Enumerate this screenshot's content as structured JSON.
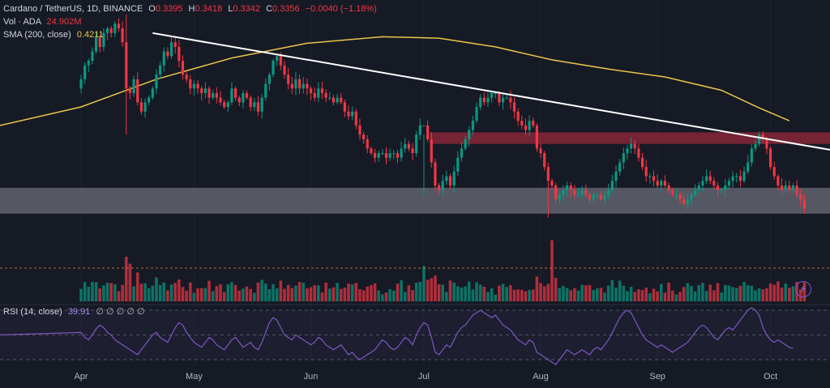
{
  "legend": {
    "symbol": "Cardano / TetherUS, 1D, BINANCE",
    "o_label": "O",
    "o_value": "0.3395",
    "h_label": "H",
    "h_value": "0.3418",
    "l_label": "L",
    "l_value": "0.3342",
    "c_label": "C",
    "c_value": "0.3356",
    "change": "−0.0040 (−1.18%)",
    "vol_label": "Vol · ADA",
    "vol_value": "24.902M",
    "sma_label": "SMA (200, close)",
    "sma_value": "0.4211",
    "rsi_label": "RSI (14, close)",
    "rsi_value": "39.91",
    "rsi_extra": "∅ ∅ ∅ ∅ ∅"
  },
  "x_axis": {
    "months": [
      {
        "label": "Apr",
        "day": 0
      },
      {
        "label": "May",
        "day": 30
      },
      {
        "label": "Jun",
        "day": 61
      },
      {
        "label": "Jul",
        "day": 91
      },
      {
        "label": "Aug",
        "day": 122
      },
      {
        "label": "Sep",
        "day": 153
      },
      {
        "label": "Oct",
        "day": 183
      }
    ]
  },
  "colors": {
    "up": "#089981",
    "down": "#f23645",
    "sma": "#e9c54b",
    "trend": "#ffffff",
    "rsi": "#7e57c2",
    "resistance_zone": "#9c2a3c",
    "support_zone": "#6b6e78"
  },
  "icons": {
    "bolt": "⚡"
  },
  "chart_data": {
    "type": "candlestick",
    "x_unit": "days since Apr 1",
    "price_range": [
      0.29,
      0.76
    ],
    "closes": [
      0.62,
      0.65,
      0.66,
      0.68,
      0.71,
      0.69,
      0.72,
      0.73,
      0.72,
      0.74,
      0.73,
      0.7,
      0.6,
      0.59,
      0.62,
      0.57,
      0.55,
      0.57,
      0.58,
      0.6,
      0.63,
      0.65,
      0.68,
      0.67,
      0.7,
      0.69,
      0.66,
      0.63,
      0.62,
      0.6,
      0.61,
      0.6,
      0.59,
      0.6,
      0.58,
      0.59,
      0.58,
      0.57,
      0.56,
      0.57,
      0.6,
      0.58,
      0.57,
      0.59,
      0.58,
      0.56,
      0.57,
      0.55,
      0.58,
      0.61,
      0.63,
      0.66,
      0.67,
      0.65,
      0.63,
      0.61,
      0.6,
      0.62,
      0.6,
      0.61,
      0.6,
      0.59,
      0.58,
      0.6,
      0.59,
      0.58,
      0.58,
      0.57,
      0.58,
      0.57,
      0.55,
      0.54,
      0.55,
      0.52,
      0.5,
      0.49,
      0.47,
      0.46,
      0.45,
      0.46,
      0.46,
      0.45,
      0.46,
      0.46,
      0.45,
      0.47,
      0.48,
      0.47,
      0.46,
      0.5,
      0.52,
      0.52,
      0.49,
      0.44,
      0.39,
      0.38,
      0.4,
      0.41,
      0.39,
      0.42,
      0.45,
      0.47,
      0.49,
      0.51,
      0.53,
      0.56,
      0.58,
      0.57,
      0.58,
      0.59,
      0.59,
      0.57,
      0.58,
      0.58,
      0.57,
      0.55,
      0.53,
      0.52,
      0.51,
      0.53,
      0.52,
      0.47,
      0.46,
      0.43,
      0.4,
      0.39,
      0.36,
      0.37,
      0.38,
      0.39,
      0.38,
      0.37,
      0.37,
      0.38,
      0.37,
      0.36,
      0.37,
      0.37,
      0.36,
      0.37,
      0.38,
      0.4,
      0.42,
      0.44,
      0.46,
      0.47,
      0.48,
      0.47,
      0.45,
      0.43,
      0.41,
      0.41,
      0.4,
      0.39,
      0.4,
      0.39,
      0.38,
      0.37,
      0.37,
      0.36,
      0.35,
      0.36,
      0.37,
      0.38,
      0.39,
      0.4,
      0.41,
      0.4,
      0.39,
      0.38,
      0.38,
      0.39,
      0.4,
      0.41,
      0.41,
      0.4,
      0.42,
      0.44,
      0.47,
      0.48,
      0.5,
      0.49,
      0.47,
      0.43,
      0.41,
      0.39,
      0.38,
      0.39,
      0.38,
      0.39,
      0.37,
      0.36,
      0.34
    ],
    "wick_extremes": [
      {
        "day": 12,
        "high": 0.76,
        "low": 0.5
      },
      {
        "day": 91,
        "high": 0.5,
        "low": 0.37
      },
      {
        "day": 124,
        "high": 0.44,
        "low": 0.32
      }
    ],
    "sma_200": [
      {
        "day": 0,
        "value": 0.56
      },
      {
        "day": 20,
        "value": 0.62
      },
      {
        "day": 40,
        "value": 0.666
      },
      {
        "day": 60,
        "value": 0.698
      },
      {
        "day": 80,
        "value": 0.712
      },
      {
        "day": 95,
        "value": 0.709
      },
      {
        "day": 110,
        "value": 0.69
      },
      {
        "day": 125,
        "value": 0.662
      },
      {
        "day": 140,
        "value": 0.642
      },
      {
        "day": 155,
        "value": 0.625
      },
      {
        "day": 170,
        "value": 0.596
      },
      {
        "day": 180,
        "value": 0.558
      },
      {
        "day": 188,
        "value": 0.53
      }
    ],
    "trendline": {
      "start": {
        "day": 19,
        "value": 0.72
      },
      "end": {
        "day": 204,
        "value": 0.46
      }
    },
    "resistance_zone": [
      0.48,
      0.505
    ],
    "support_zone": [
      0.329,
      0.385
    ],
    "volume_spikes": [
      {
        "day": 12,
        "level": 0.95
      },
      {
        "day": 13,
        "level": 0.8
      },
      {
        "day": 91,
        "level": 0.75
      },
      {
        "day": 125,
        "level": 1.3
      },
      {
        "day": 126,
        "level": 0.5
      }
    ],
    "rsi_levels": [
      70,
      50,
      30
    ],
    "rsi": [
      52,
      48,
      46,
      50,
      55,
      58,
      56,
      52,
      50,
      46,
      44,
      42,
      40,
      38,
      36,
      34,
      38,
      42,
      46,
      50,
      52,
      48,
      46,
      44,
      50,
      56,
      60,
      58,
      52,
      48,
      44,
      42,
      40,
      44,
      48,
      46,
      42,
      40,
      38,
      42,
      46,
      48,
      44,
      40,
      42,
      44,
      40,
      38,
      44,
      52,
      60,
      64,
      62,
      56,
      50,
      48,
      46,
      50,
      48,
      46,
      44,
      42,
      44,
      48,
      46,
      42,
      40,
      38,
      40,
      42,
      38,
      34,
      36,
      32,
      30,
      32,
      34,
      36,
      38,
      42,
      46,
      44,
      40,
      38,
      40,
      44,
      48,
      46,
      42,
      50,
      56,
      60,
      58,
      48,
      36,
      34,
      38,
      42,
      40,
      46,
      52,
      56,
      58,
      62,
      66,
      68,
      70,
      68,
      66,
      64,
      66,
      62,
      58,
      56,
      54,
      50,
      46,
      44,
      42,
      46,
      44,
      36,
      34,
      32,
      30,
      28,
      26,
      30,
      34,
      38,
      36,
      34,
      36,
      38,
      36,
      34,
      38,
      40,
      38,
      42,
      46,
      52,
      58,
      64,
      68,
      70,
      68,
      62,
      56,
      50,
      46,
      44,
      42,
      40,
      42,
      40,
      38,
      36,
      38,
      40,
      42,
      44,
      48,
      52,
      56,
      58,
      56,
      52,
      48,
      46,
      50,
      54,
      56,
      54,
      58,
      62,
      66,
      70,
      72,
      70,
      66,
      56,
      50,
      46,
      44,
      46,
      44,
      42,
      40,
      39
    ]
  }
}
